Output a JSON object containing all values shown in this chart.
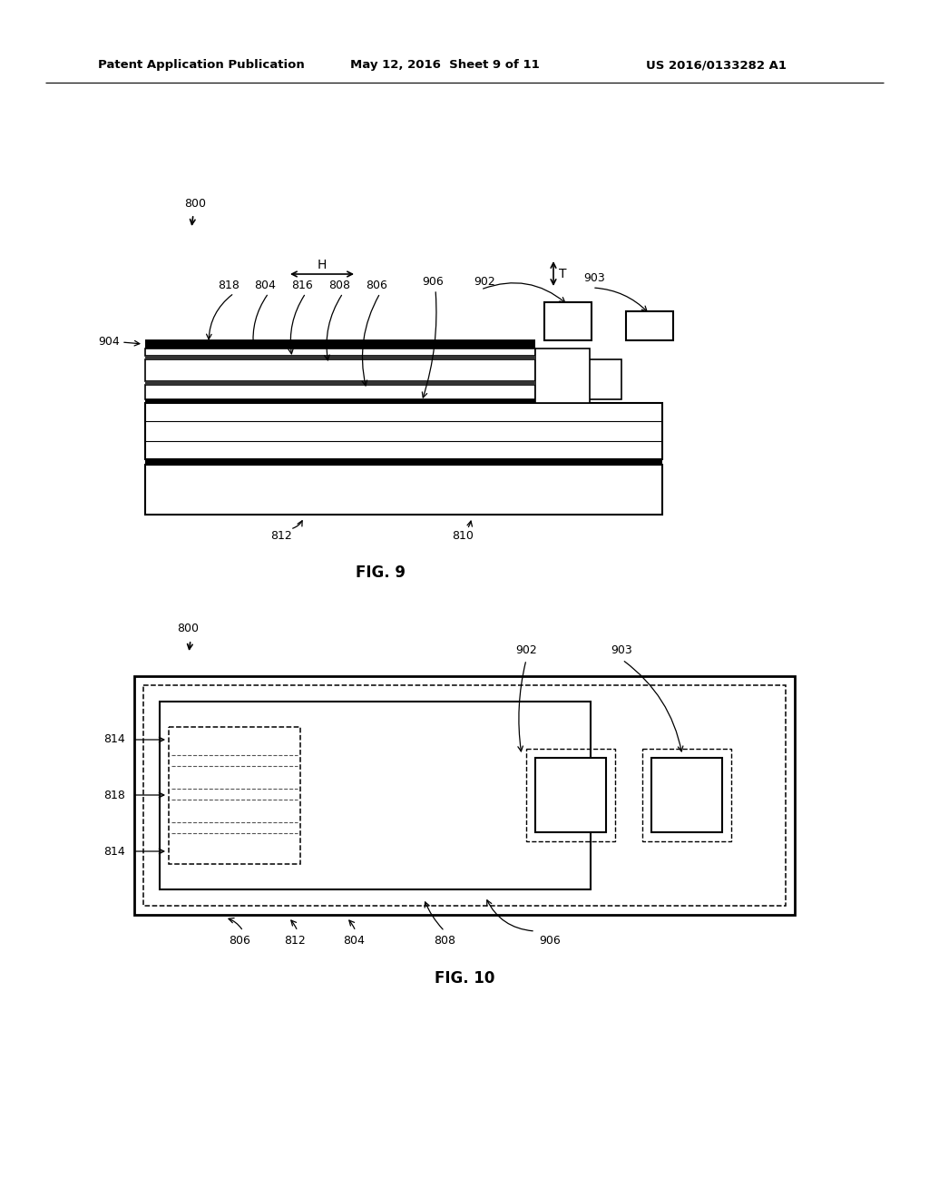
{
  "bg_color": "#ffffff",
  "line_color": "#000000",
  "header_left": "Patent Application Publication",
  "header_mid": "May 12, 2016  Sheet 9 of 11",
  "header_right": "US 2016/0133282 A1",
  "fig9_caption": "FIG. 9",
  "fig10_caption": "FIG. 10",
  "fig9": {
    "label_800": "800",
    "label_H": "H",
    "label_T": "T",
    "label_904": "904",
    "label_818": "818",
    "label_804": "804",
    "label_816": "816",
    "label_808": "808",
    "label_806": "806",
    "label_906": "906",
    "label_902": "902",
    "label_903": "903",
    "label_812": "812",
    "label_810": "810"
  },
  "fig10": {
    "label_800": "800",
    "label_902": "902",
    "label_903": "903",
    "label_814a": "814",
    "label_818": "818",
    "label_814b": "814",
    "label_806": "806",
    "label_812": "812",
    "label_804": "804",
    "label_808": "808",
    "label_906": "906"
  }
}
